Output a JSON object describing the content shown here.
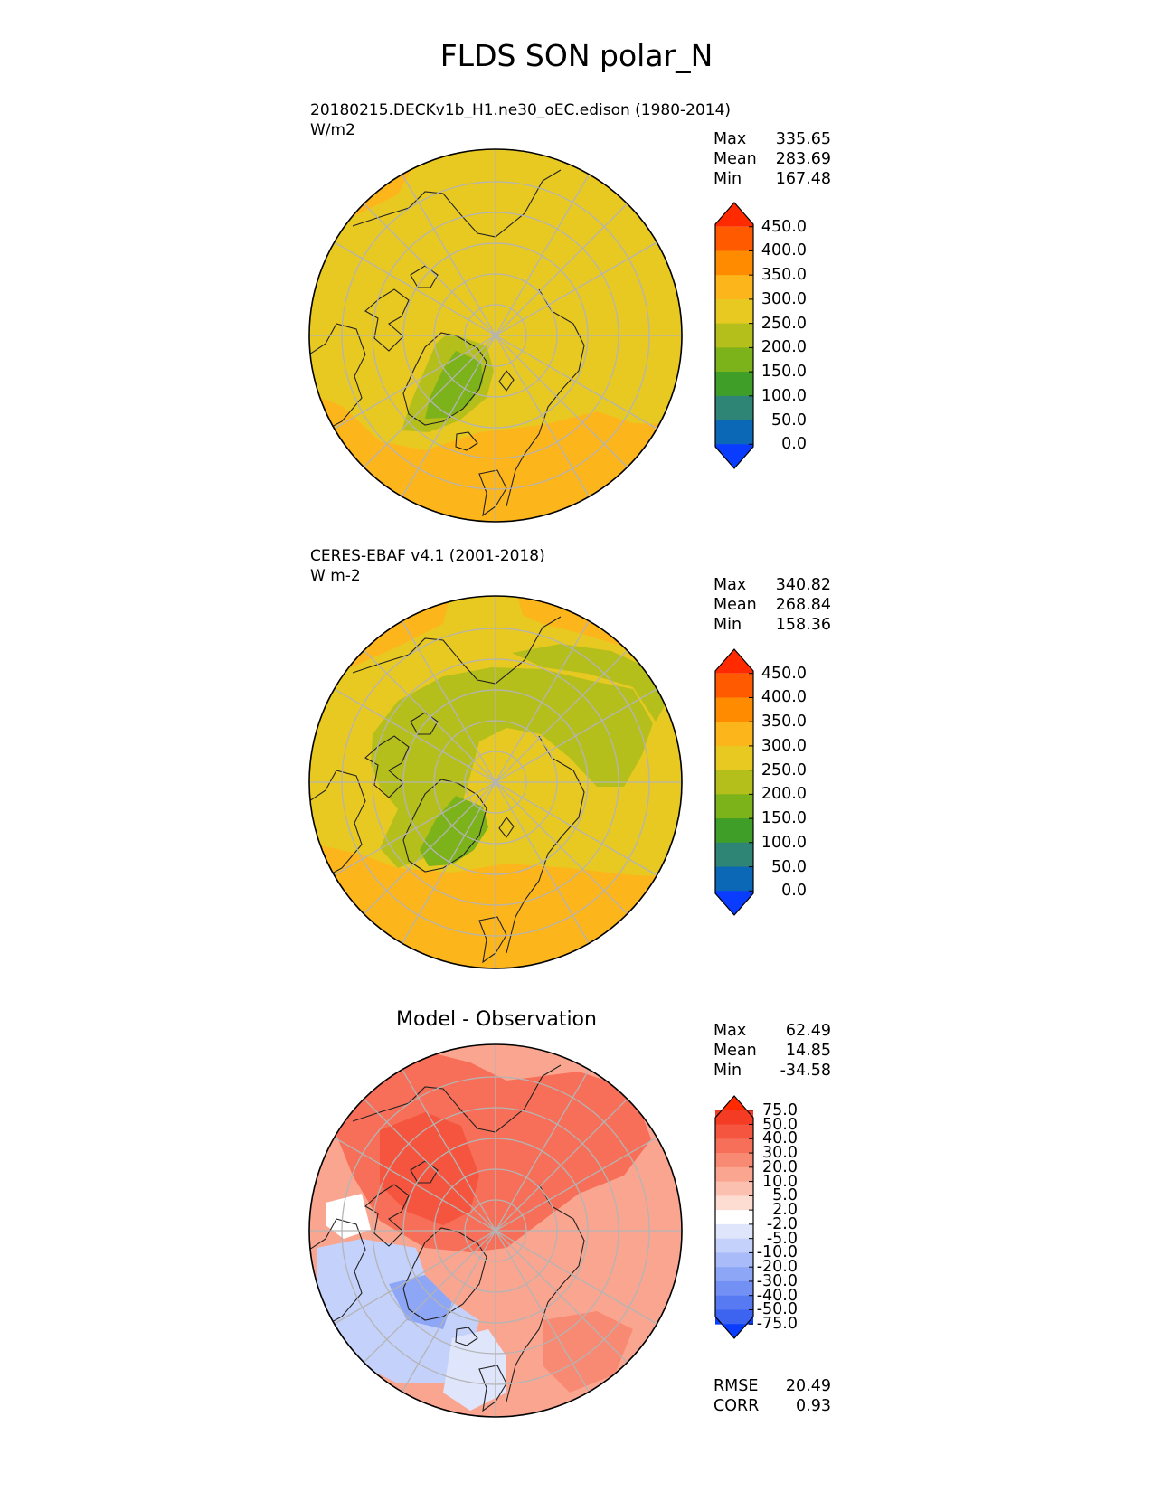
{
  "figure": {
    "title": "FLDS SON polar_N"
  },
  "panels": [
    {
      "title_line1": "20180215.DECKv1b_H1.ne30_oEC.edison (1980-2014)",
      "title_line2": "W/m2",
      "stats": {
        "max_label": "Max",
        "max": "335.65",
        "mean_label": "Mean",
        "mean": "283.69",
        "min_label": "Min",
        "min": "167.48"
      }
    },
    {
      "title_line1": "CERES-EBAF v4.1 (2001-2018)",
      "title_line2": "W m-2",
      "stats": {
        "max_label": "Max",
        "max": "340.82",
        "mean_label": "Mean",
        "mean": "268.84",
        "min_label": "Min",
        "min": "158.36"
      }
    },
    {
      "title": "Model - Observation",
      "stats": {
        "max_label": "Max",
        "max": "62.49",
        "mean_label": "Mean",
        "mean": "14.85",
        "min_label": "Min",
        "min": "-34.58"
      },
      "metrics": {
        "rmse_label": "RMSE",
        "rmse": "20.49",
        "corr_label": "CORR",
        "corr": "0.93"
      }
    }
  ],
  "colorbars": {
    "field": {
      "ticks": [
        "450.0",
        "400.0",
        "350.0",
        "300.0",
        "250.0",
        "200.0",
        "150.0",
        "100.0",
        "50.0",
        "0.0"
      ],
      "colors": [
        "#ff2a00",
        "#ff5a00",
        "#ff8c00",
        "#fdb51c",
        "#e8c921",
        "#b5bf1c",
        "#7cb21a",
        "#3e9e28",
        "#2f8575",
        "#0a68b6",
        "#0a3cff"
      ]
    },
    "diff": {
      "ticks": [
        "75.0",
        "50.0",
        "40.0",
        "30.0",
        "20.0",
        "10.0",
        "5.0",
        "2.0",
        "-2.0",
        "-5.0",
        "-10.0",
        "-20.0",
        "-30.0",
        "-40.0",
        "-50.0",
        "-75.0"
      ],
      "colors": [
        "#ff2a00",
        "#f43b24",
        "#f5553e",
        "#f76f58",
        "#f88a73",
        "#faa590",
        "#fbc0b0",
        "#fddcd2",
        "#ffffff",
        "#dfe5fb",
        "#c4d1fa",
        "#a9bbf8",
        "#8ea6f6",
        "#7390f4",
        "#577af2",
        "#3c64f0",
        "#0a3cff"
      ]
    }
  },
  "chart_data": [
    {
      "type": "heatmap",
      "projection": "north polar stereographic",
      "title": "20180215.DECKv1b_H1.ne30_oEC.edison (1980-2014)",
      "units": "W/m2",
      "stats": {
        "max": 335.65,
        "mean": 283.69,
        "min": 167.48
      },
      "colorbar_levels": [
        0,
        50,
        100,
        150,
        200,
        250,
        300,
        350,
        400,
        450
      ]
    },
    {
      "type": "heatmap",
      "projection": "north polar stereographic",
      "title": "CERES-EBAF v4.1 (2001-2018)",
      "units": "W m-2",
      "stats": {
        "max": 340.82,
        "mean": 268.84,
        "min": 158.36
      },
      "colorbar_levels": [
        0,
        50,
        100,
        150,
        200,
        250,
        300,
        350,
        400,
        450
      ]
    },
    {
      "type": "heatmap",
      "projection": "north polar stereographic",
      "title": "Model - Observation",
      "stats": {
        "max": 62.49,
        "mean": 14.85,
        "min": -34.58,
        "rmse": 20.49,
        "corr": 0.93
      },
      "colorbar_levels": [
        -75,
        -50,
        -40,
        -30,
        -20,
        -10,
        -5,
        -2,
        2,
        5,
        10,
        20,
        30,
        40,
        50,
        75
      ]
    }
  ]
}
